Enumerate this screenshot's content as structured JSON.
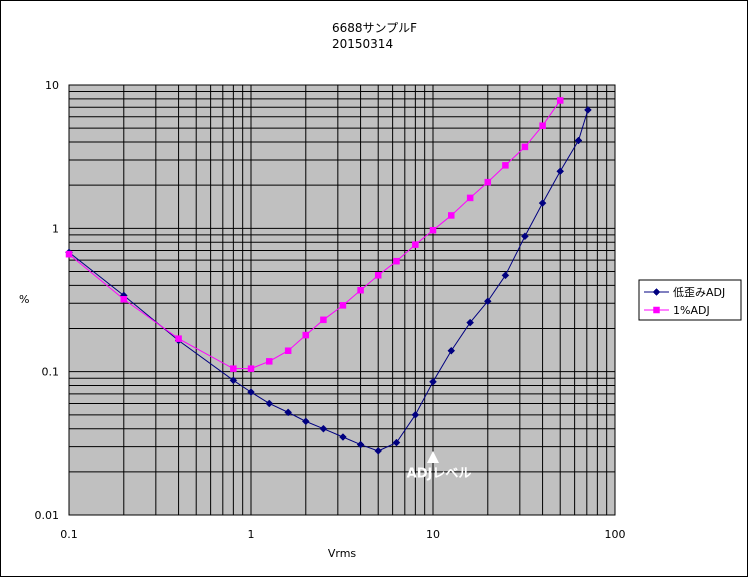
{
  "chart_data": {
    "type": "line",
    "title": "6688サンプルF",
    "subtitle": "20150314",
    "xlabel": "Vrms",
    "ylabel": "%",
    "x_scale": "log",
    "y_scale": "log",
    "xlim": [
      0.1,
      100
    ],
    "ylim": [
      0.01,
      10
    ],
    "x_ticks": [
      "0.1",
      "1",
      "10",
      "100"
    ],
    "y_ticks": [
      "0.01",
      "0.1",
      "1",
      "10"
    ],
    "grid": true,
    "legend_position": "right",
    "plot_background": "#c0c0c0",
    "series": [
      {
        "name": "低歪みADJ",
        "color": "#000080",
        "marker": "diamond",
        "x": [
          0.1,
          0.2,
          0.4,
          0.8,
          1.0,
          1.26,
          1.6,
          2.0,
          2.5,
          3.2,
          4.0,
          5.0,
          6.3,
          8.0,
          10,
          12.6,
          16,
          20,
          25,
          32,
          40,
          50,
          63,
          71
        ],
        "y": [
          0.68,
          0.34,
          0.165,
          0.087,
          0.072,
          0.06,
          0.052,
          0.045,
          0.04,
          0.035,
          0.031,
          0.028,
          0.032,
          0.05,
          0.085,
          0.14,
          0.22,
          0.31,
          0.47,
          0.88,
          1.5,
          2.5,
          4.1,
          6.7
        ]
      },
      {
        "name": "1%ADJ",
        "color": "#ff00ff",
        "marker": "square",
        "x": [
          0.1,
          0.2,
          0.4,
          0.8,
          1.0,
          1.26,
          1.6,
          2.0,
          2.5,
          3.2,
          4.0,
          5.0,
          6.3,
          8.0,
          10,
          12.6,
          16,
          20,
          25,
          32,
          40,
          50
        ],
        "y": [
          0.66,
          0.32,
          0.17,
          0.105,
          0.105,
          0.118,
          0.14,
          0.18,
          0.23,
          0.29,
          0.37,
          0.47,
          0.59,
          0.77,
          0.97,
          1.23,
          1.63,
          2.1,
          2.75,
          3.7,
          5.2,
          7.8
        ]
      }
    ],
    "annotations": [
      {
        "text": "ADJレベル",
        "x": 10,
        "y": 0.018,
        "arrow_to": {
          "x": 10,
          "y": 0.035
        },
        "color": "#ffffff"
      }
    ]
  }
}
